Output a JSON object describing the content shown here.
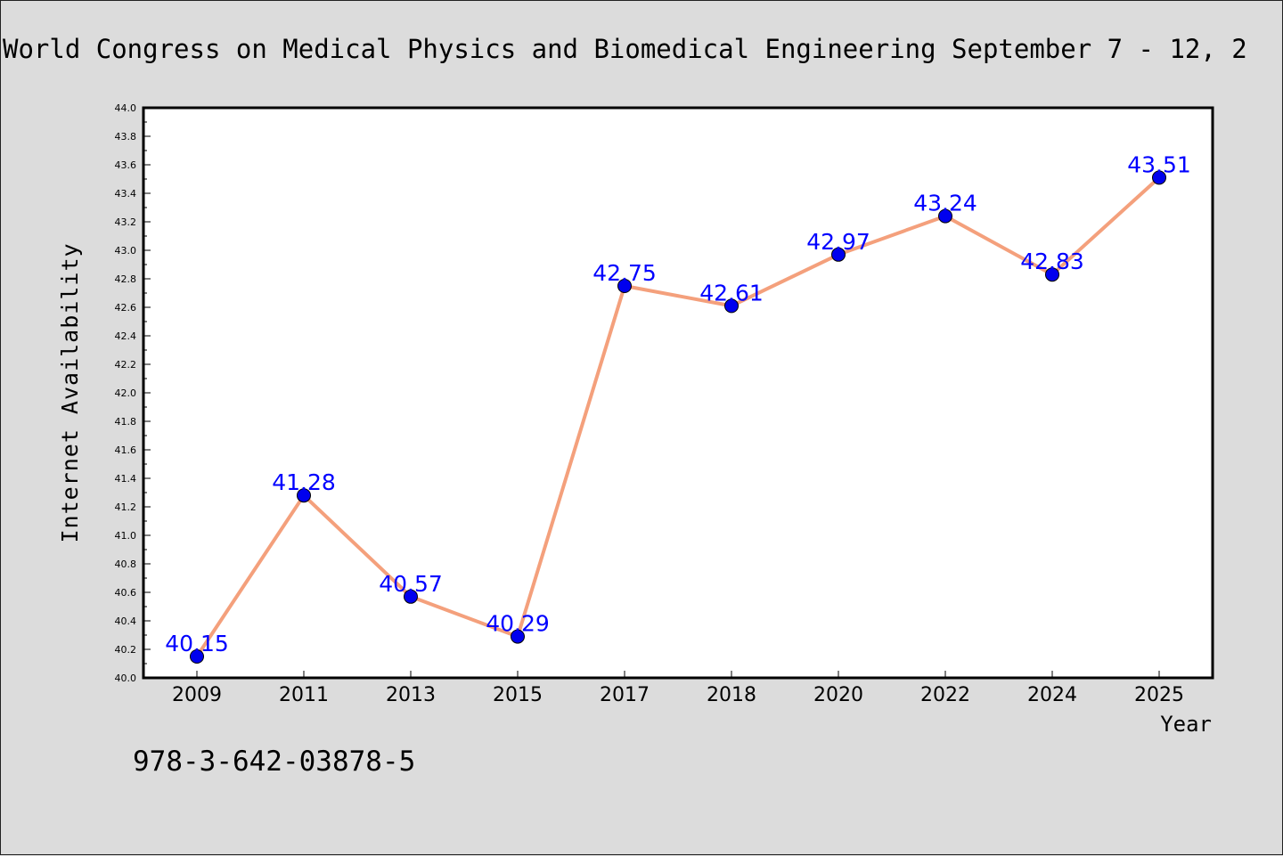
{
  "chart_data": {
    "type": "line",
    "title": "World Congress on Medical Physics and Biomedical Engineering September 7 - 12, 2",
    "xlabel": "Year",
    "ylabel": "Internet Availability",
    "categories": [
      "2009",
      "2011",
      "2013",
      "2015",
      "2017",
      "2018",
      "2020",
      "2022",
      "2024",
      "2025"
    ],
    "series": [
      {
        "values": [
          40.15,
          41.28,
          40.57,
          40.29,
          42.75,
          42.61,
          42.97,
          43.24,
          42.83,
          43.51
        ],
        "labels": [
          "40.15",
          "41.28",
          "40.57",
          "40.29",
          "42.75",
          "42.61",
          "42.97",
          "43.24",
          "42.83",
          "43.51"
        ]
      }
    ],
    "ylim": [
      40.0,
      44.0
    ],
    "yticks": [
      "40.0",
      "40.2",
      "40.4",
      "40.6",
      "40.8",
      "41.0",
      "41.2",
      "41.4",
      "41.6",
      "41.8",
      "42.0",
      "42.2",
      "42.4",
      "42.6",
      "42.8",
      "43.0",
      "43.2",
      "43.4",
      "43.6",
      "43.8",
      "44.0"
    ],
    "grid": false,
    "legend": "none",
    "line_color": "#f4a07c",
    "marker_color": "#0000ee",
    "label_color": "#0000ff",
    "background_color": "#dcdcdc",
    "plot_background_color": "#ffffff"
  },
  "annotation": "978-3-642-03878-5"
}
